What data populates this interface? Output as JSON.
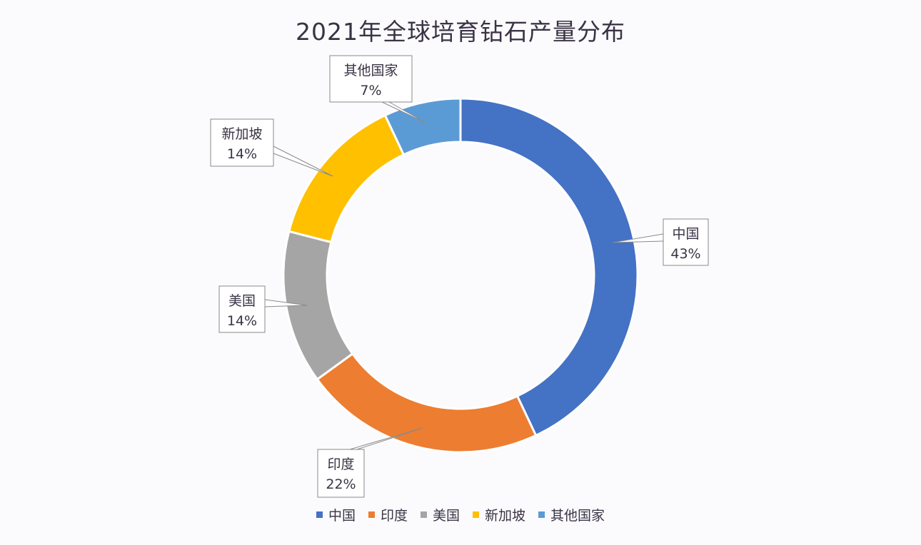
{
  "chart_data": {
    "type": "pie",
    "subtype": "donut",
    "title": "2021年全球培育钻石产量分布",
    "categories": [
      "中国",
      "印度",
      "美国",
      "新加坡",
      "其他国家"
    ],
    "values": [
      43,
      22,
      14,
      14,
      7
    ],
    "labels": [
      "43%",
      "22%",
      "14%",
      "14%",
      "7%"
    ],
    "colors": [
      "#4472C4",
      "#ED7D31",
      "#A5A5A5",
      "#FFC000",
      "#5B9BD5"
    ],
    "legend_position": "bottom",
    "start_angle": "top, clockwise"
  }
}
